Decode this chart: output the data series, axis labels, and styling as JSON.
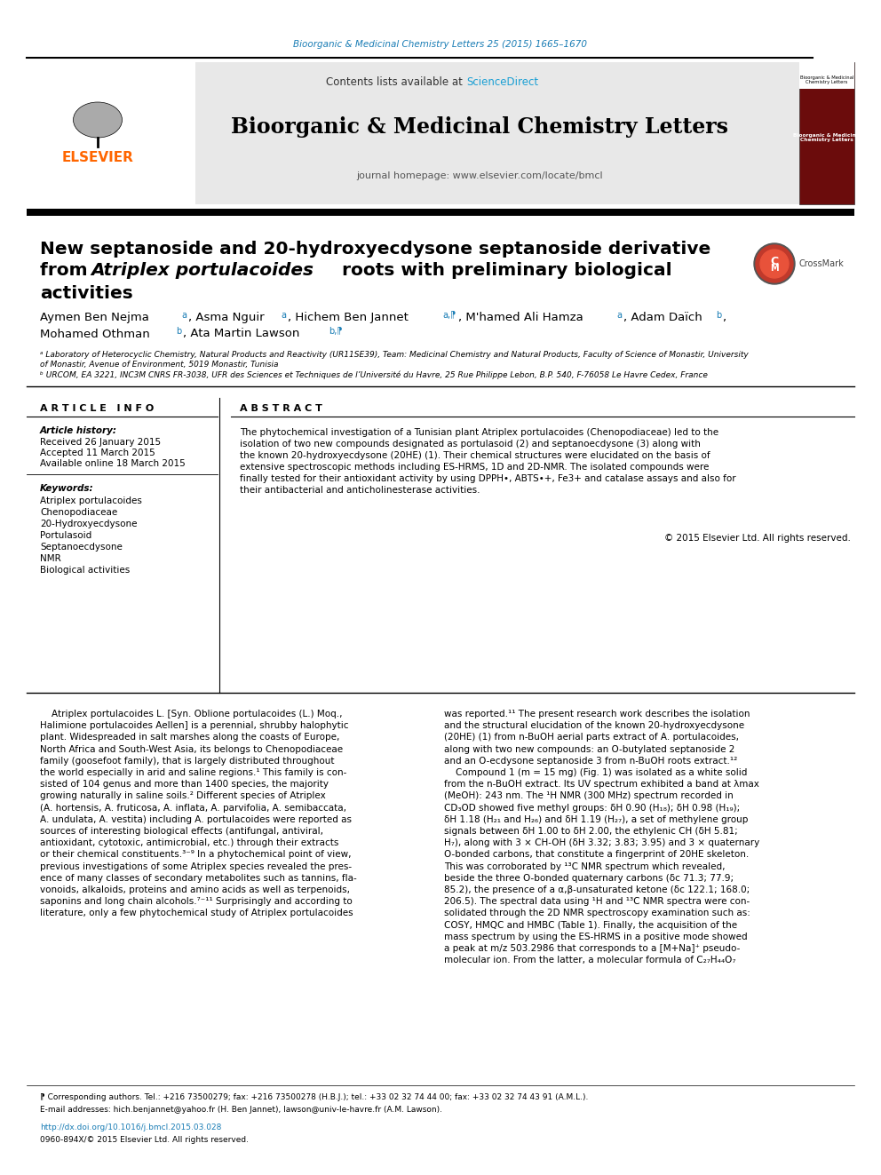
{
  "page_bg": "#ffffff",
  "top_journal_ref": "Bioorganic & Medicinal Chemistry Letters 25 (2015) 1665–1670",
  "top_journal_ref_color": "#1a7db5",
  "header_bg": "#e8e8e8",
  "header_sciencedirect_color": "#1a9fd4",
  "journal_title": "Bioorganic & Medicinal Chemistry Letters",
  "journal_homepage": "journal homepage: www.elsevier.com/locate/bmcl",
  "elsevier_color": "#ff6600",
  "article_title_line1": "New septanoside and 20-hydroxyecdysone septanoside derivative",
  "article_title_line2_pre": "from ",
  "article_title_italic": "Atriplex portulacoides",
  "article_title_line2_post": " roots with preliminary biological",
  "article_title_line3": "activities",
  "keywords": [
    "Atriplex portulacoides",
    "Chenopodiaceae",
    "20-Hydroxyecdysone",
    "Portulasoid",
    "Septanoecdysone",
    "NMR",
    "Biological activities"
  ],
  "copyright": "© 2015 Elsevier Ltd. All rights reserved.",
  "footer_line1": "⁋ Corresponding authors. Tel.: +216 73500279; fax: +216 73500278 (H.B.J.); tel.: +33 02 32 74 44 00; fax: +33 02 32 74 43 91 (A.M.L.).",
  "footer_line2": "E-mail addresses: hich.benjannet@yahoo.fr (H. Ben Jannet), lawson@univ-le-havre.fr (A.M. Lawson).",
  "doi_line": "http://dx.doi.org/10.1016/j.bmcl.2015.03.028",
  "issn_line": "0960-894X/© 2015 Elsevier Ltd. All rights reserved.",
  "abstract_lines": [
    "The phytochemical investigation of a Tunisian plant Atriplex portulacoides (Chenopodiaceae) led to the",
    "isolation of two new compounds designated as portulasoid (2) and septanoecdysone (3) along with",
    "the known 20-hydroxyecdysone (20HE) (1). Their chemical structures were elucidated on the basis of",
    "extensive spectroscopic methods including ES-HRMS, 1D and 2D-NMR. The isolated compounds were",
    "finally tested for their antioxidant activity by using DPPH•, ABTS•+, Fe3+ and catalase assays and also for",
    "their antibacterial and anticholinesterase activities."
  ],
  "body_col1_lines": [
    "    Atriplex portulacoides L. [Syn. Oblione portulacoides (L.) Moq.,",
    "Halimione portulacoides Aellen] is a perennial, shrubby halophytic",
    "plant. Widespreaded in salt marshes along the coasts of Europe,",
    "North Africa and South-West Asia, its belongs to Chenopodiaceae",
    "family (goosefoot family), that is largely distributed throughout",
    "the world especially in arid and saline regions.¹ This family is con-",
    "sisted of 104 genus and more than 1400 species, the majority",
    "growing naturally in saline soils.² Different species of Atriplex",
    "(A. hortensis, A. fruticosa, A. inflata, A. parvifolia, A. semibaccata,",
    "A. undulata, A. vestita) including A. portulacoides were reported as",
    "sources of interesting biological effects (antifungal, antiviral,",
    "antioxidant, cytotoxic, antimicrobial, etc.) through their extracts",
    "or their chemical constituents.³⁻⁹ In a phytochemical point of view,",
    "previous investigations of some Atriplex species revealed the pres-",
    "ence of many classes of secondary metabolites such as tannins, fla-",
    "vonoids, alkaloids, proteins and amino acids as well as terpenoids,",
    "saponins and long chain alcohols.⁷⁻¹¹ Surprisingly and according to",
    "literature, only a few phytochemical study of Atriplex portulacoides"
  ],
  "body_col2_lines": [
    "was reported.¹¹ The present research work describes the isolation",
    "and the structural elucidation of the known 20-hydroxyecdysone",
    "(20HE) (1) from n-BuOH aerial parts extract of A. portulacoides,",
    "along with two new compounds: an O-butylated septanoside 2",
    "and an O-ecdysone septanoside 3 from n-BuOH roots extract.¹²",
    "    Compound 1 (m = 15 mg) (Fig. 1) was isolated as a white solid",
    "from the n-BuOH extract. Its UV spectrum exhibited a band at λmax",
    "(MeOH): 243 nm. The ¹H NMR (300 MHz) spectrum recorded in",
    "CD₃OD showed five methyl groups: δH 0.90 (H₁₈); δH 0.98 (H₁₉);",
    "δH 1.18 (H₂₁ and H₂₆) and δH 1.19 (H₂₇), a set of methylene group",
    "signals between δH 1.00 to δH 2.00, the ethylenic CH (δH 5.81;",
    "H₇), along with 3 × CH-OH (δH 3.32; 3.83; 3.95) and 3 × quaternary",
    "O-bonded carbons, that constitute a fingerprint of 20HE skeleton.",
    "This was corroborated by ¹³C NMR spectrum which revealed,",
    "beside the three O-bonded quaternary carbons (δc 71.3; 77.9;",
    "85.2), the presence of a α,β-unsaturated ketone (δc 122.1; 168.0;",
    "206.5). The spectral data using ¹H and ¹³C NMR spectra were con-",
    "solidated through the 2D NMR spectroscopy examination such as:",
    "COSY, HMQC and HMBC (Table 1). Finally, the acquisition of the",
    "mass spectrum by using the ES-HRMS in a positive mode showed",
    "a peak at m/z 503.2986 that corresponds to a [M+Na]⁺ pseudo-",
    "molecular ion. From the latter, a molecular formula of C₂₇H₄₄O₇"
  ]
}
